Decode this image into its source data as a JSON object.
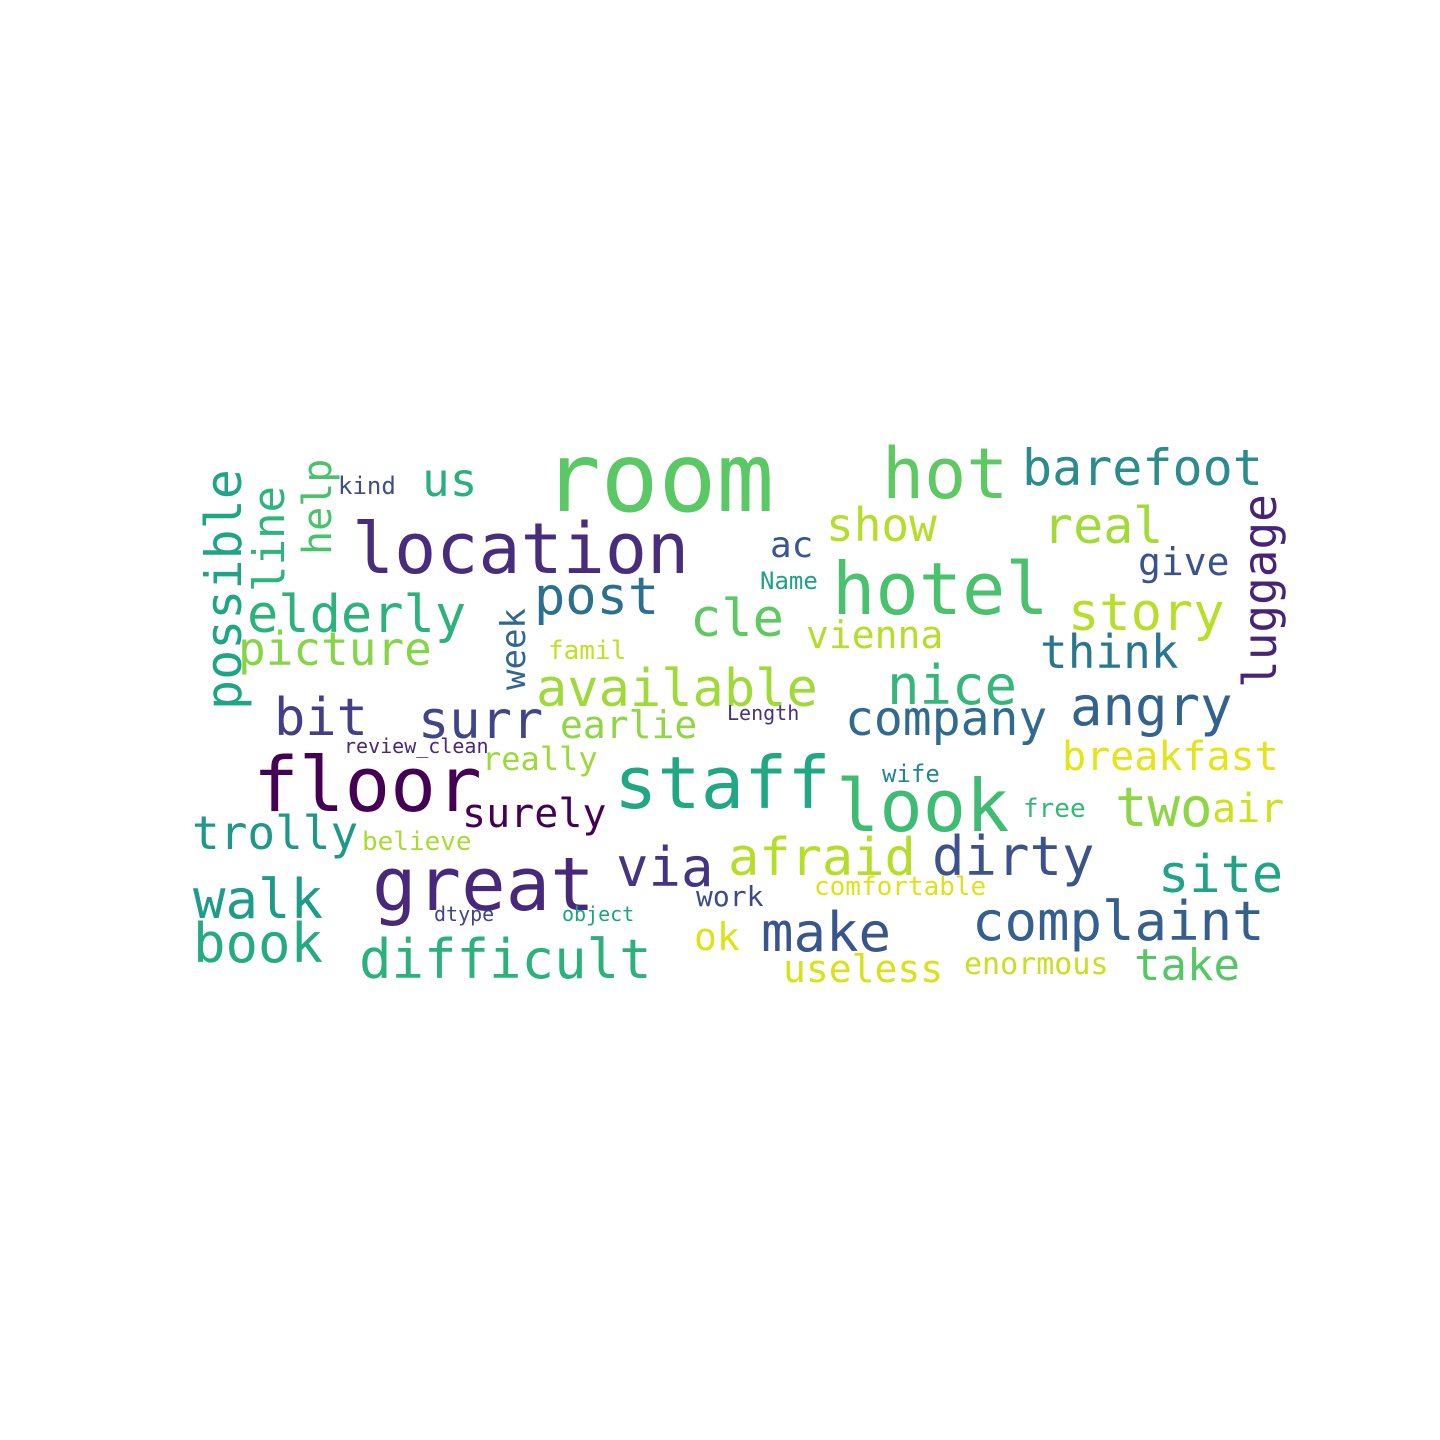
{
  "words": [
    {
      "text": "room",
      "color": "#5ac864"
    },
    {
      "text": "location",
      "color": "#472d7b"
    },
    {
      "text": "hot",
      "color": "#5ec962"
    },
    {
      "text": "hotel",
      "color": "#4ac16d"
    },
    {
      "text": "barefoot",
      "color": "#2c8b8c"
    },
    {
      "text": "staff",
      "color": "#22a785"
    },
    {
      "text": "floor",
      "color": "#440154"
    },
    {
      "text": "great",
      "color": "#482878"
    },
    {
      "text": "look",
      "color": "#3fbc73"
    },
    {
      "text": "available",
      "color": "#9fda3a"
    },
    {
      "text": "nice",
      "color": "#35b779"
    },
    {
      "text": "possible",
      "color": "#20a486"
    },
    {
      "text": "line",
      "color": "#2fb47c"
    },
    {
      "text": "help",
      "color": "#4ac16d"
    },
    {
      "text": "kind",
      "color": "#3e4c8a"
    },
    {
      "text": "us",
      "color": "#2ab07f"
    },
    {
      "text": "show",
      "color": "#b5de2b"
    },
    {
      "text": "real",
      "color": "#a2da37"
    },
    {
      "text": "luggage",
      "color": "#482475"
    },
    {
      "text": "ac",
      "color": "#38588c"
    },
    {
      "text": "give",
      "color": "#3b528b"
    },
    {
      "text": "Name",
      "color": "#1fa088"
    },
    {
      "text": "post",
      "color": "#2d708e"
    },
    {
      "text": "elderly",
      "color": "#2db27d"
    },
    {
      "text": "week",
      "color": "#31678e"
    },
    {
      "text": "cle",
      "color": "#5ec962"
    },
    {
      "text": "story",
      "color": "#b8de29"
    },
    {
      "text": "vienna",
      "color": "#b5de2b"
    },
    {
      "text": "picture",
      "color": "#86d549"
    },
    {
      "text": "famil",
      "color": "#c2df23"
    },
    {
      "text": "think",
      "color": "#2a768e"
    },
    {
      "text": "angry",
      "color": "#33638d"
    },
    {
      "text": "bit",
      "color": "#433e85"
    },
    {
      "text": "surr",
      "color": "#414487"
    },
    {
      "text": "earlie",
      "color": "#8ed645"
    },
    {
      "text": "Length",
      "color": "#46327e"
    },
    {
      "text": "company",
      "color": "#306a8e"
    },
    {
      "text": "review_clean",
      "color": "#482878"
    },
    {
      "text": "really",
      "color": "#9dd93b"
    },
    {
      "text": "breakfast",
      "color": "#e5e419"
    },
    {
      "text": "wife",
      "color": "#24868e"
    },
    {
      "text": "surely",
      "color": "#440154"
    },
    {
      "text": "two",
      "color": "#8ed645"
    },
    {
      "text": "air",
      "color": "#cde11d"
    },
    {
      "text": "free",
      "color": "#35b779"
    },
    {
      "text": "trolly",
      "color": "#1f978b"
    },
    {
      "text": "believe",
      "color": "#a8db34"
    },
    {
      "text": "via",
      "color": "#453581"
    },
    {
      "text": "afraid",
      "color": "#b5de2b"
    },
    {
      "text": "dirty",
      "color": "#3b528b"
    },
    {
      "text": "site",
      "color": "#20a386"
    },
    {
      "text": "walk",
      "color": "#1e9b8a"
    },
    {
      "text": "comfortable",
      "color": "#dde318"
    },
    {
      "text": "work",
      "color": "#3e4989"
    },
    {
      "text": "dtype",
      "color": "#414487"
    },
    {
      "text": "object",
      "color": "#1fa188"
    },
    {
      "text": "complaint",
      "color": "#355f8d"
    },
    {
      "text": "book",
      "color": "#25ab82"
    },
    {
      "text": "make",
      "color": "#39568c"
    },
    {
      "text": "ok",
      "color": "#dde318"
    },
    {
      "text": "difficult",
      "color": "#2cb17e"
    },
    {
      "text": "useless",
      "color": "#d8e219"
    },
    {
      "text": "enormous",
      "color": "#c8e020"
    },
    {
      "text": "take",
      "color": "#56c667"
    }
  ]
}
